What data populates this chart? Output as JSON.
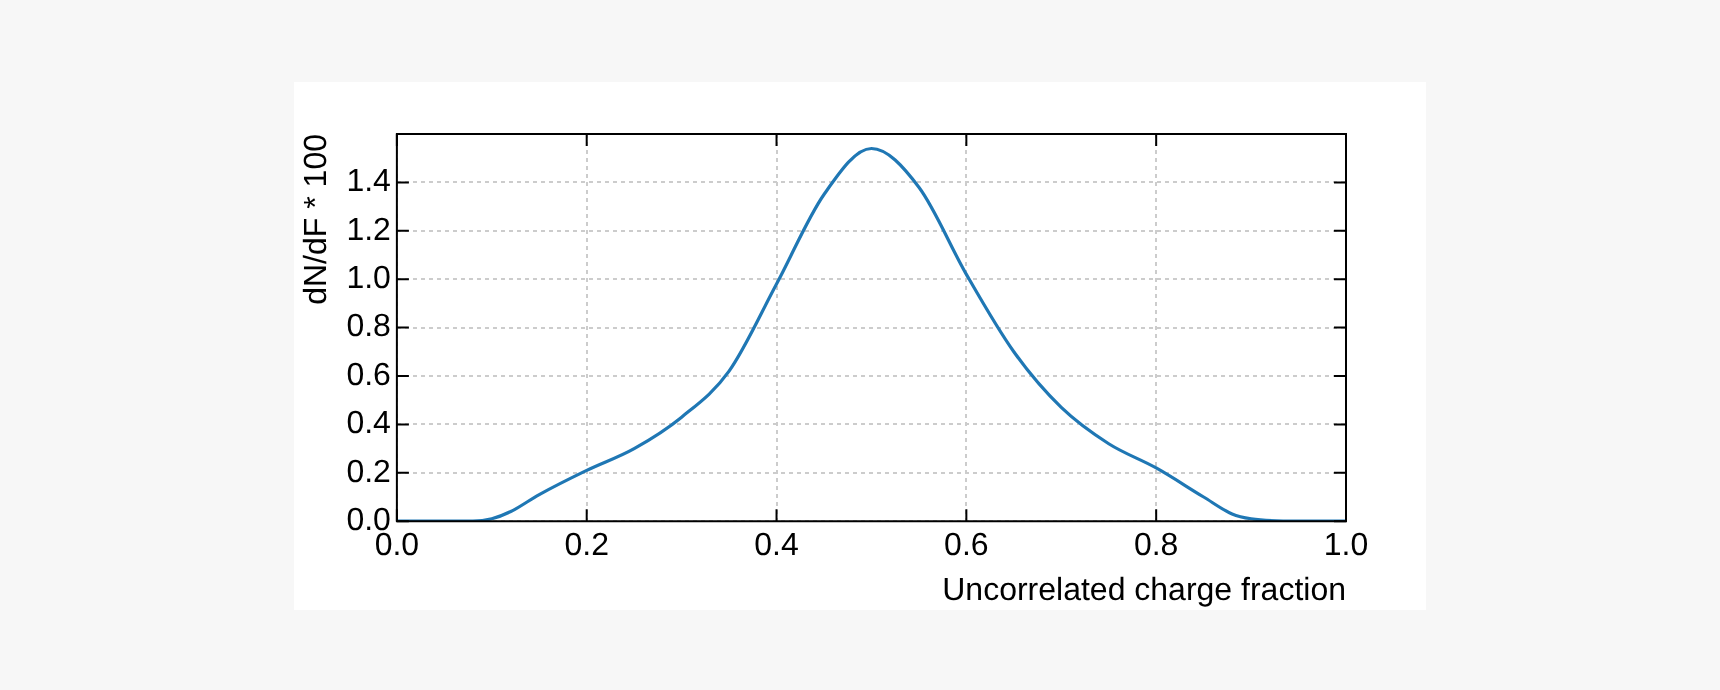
{
  "chart_data": {
    "type": "line",
    "xlabel": "Uncorrelated charge fraction",
    "ylabel": "dN/dF * 100",
    "x": [
      0,
      0.05,
      0.08,
      0.1,
      0.12,
      0.15,
      0.2,
      0.25,
      0.3,
      0.35,
      0.4,
      0.45,
      0.5,
      0.55,
      0.6,
      0.65,
      0.7,
      0.75,
      0.8,
      0.85,
      0.88,
      0.9,
      0.95,
      1.0
    ],
    "series": [
      {
        "color": "#1f77b4",
        "values": [
          0,
          0,
          0,
          0.01,
          0.04,
          0.11,
          0.21,
          0.3,
          0.43,
          0.62,
          0.98,
          1.35,
          1.54,
          1.38,
          1.02,
          0.7,
          0.47,
          0.32,
          0.22,
          0.1,
          0.03,
          0.01,
          0,
          0
        ]
      }
    ],
    "xlim": [
      0,
      1
    ],
    "xticks": [
      {
        "value": 0,
        "label": "0.0"
      },
      0.2,
      0.4,
      0.6,
      0.8,
      {
        "value": 1,
        "label": "1.0"
      }
    ],
    "ylim": [
      0,
      1.6
    ],
    "yticks": [
      {
        "value": 0,
        "label": "0.0"
      },
      0.2,
      0.4,
      0.6,
      0.8,
      {
        "value": 1,
        "label": "1.0"
      },
      1.2,
      1.4
    ],
    "grid": true,
    "legend": false,
    "marker": "none",
    "line_style": "solid"
  }
}
